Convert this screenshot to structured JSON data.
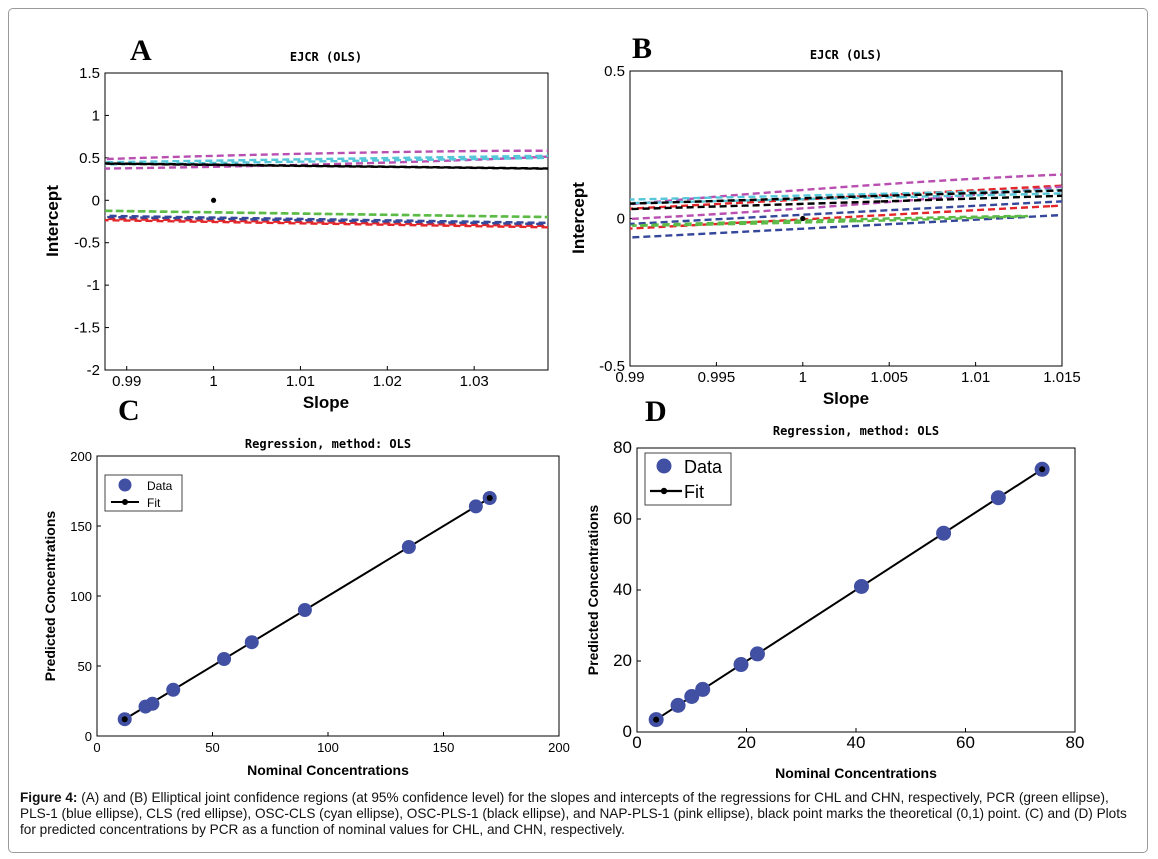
{
  "figure": {
    "caption_label": "Figure 4:",
    "caption_text": "(A) and (B) Elliptical joint confidence regions (at 95% confidence level) for the slopes and intercepts of the regressions for CHL and CHN, respectively, PCR (green ellipse), PLS-1 (blue ellipse), CLS (red ellipse), OSC-CLS (cyan ellipse), OSC-PLS-1 (black ellipse), and NAP-PLS-1 (pink ellipse), black point marks the theoretical (0,1) point. (C) and (D) Plots for predicted concentrations by PCR as a function of nominal values for CHL, and CHN, respectively."
  },
  "colors": {
    "PCR": "#5cbb47",
    "PLS-1": "#35479a",
    "CLS": "#e3262a",
    "OSC-CLS": "#55c7d9",
    "OSC-PLS-1": "#000000",
    "NAP-PLS-1": "#b94fb1",
    "data_marker": "#4150a3",
    "fit_line": "#000000"
  },
  "chart_data": [
    {
      "panel": "A",
      "type": "scatter",
      "title": "EJCR (OLS)",
      "xlabel": "Slope",
      "ylabel": "Intercept",
      "xlim": [
        0.9875,
        1.0385
      ],
      "ylim": [
        -2,
        1.5
      ],
      "xticks": [
        0.99,
        1,
        1.01,
        1.02,
        1.03
      ],
      "xtick_labels": [
        "0.99",
        "1",
        "1.01",
        "1.02",
        "1.03"
      ],
      "yticks": [
        1.5,
        1,
        0.5,
        0,
        -0.5,
        -1,
        -1.5,
        -2
      ],
      "ytick_labels": [
        "1.5",
        "1",
        "0.5",
        "0",
        "-0.5",
        "-1",
        "-1.5",
        "-2"
      ],
      "theoretical_point": {
        "x": 1,
        "y": 0
      },
      "ellipses": [
        {
          "name": "CLS",
          "cx": 1.0201,
          "cy": -0.28,
          "semi_major": 1.56,
          "semi_minor": 0.0043,
          "angle_deg": 121.3
        },
        {
          "name": "PLS-1",
          "cx": 1.0181,
          "cy": -0.24,
          "semi_major": 1.42,
          "semi_minor": 0.0037,
          "angle_deg": 121.5
        },
        {
          "name": "NAP-PLS-1",
          "cx": 1.00684,
          "cy": 0.475,
          "semi_major": 0.0216,
          "semi_minor": 0.113,
          "angle_deg": -15.9
        },
        {
          "name": "OSC-CLS",
          "cx": 1.0107,
          "cy": 0.47,
          "semi_major": 0.0075,
          "semi_minor": 0.155,
          "angle_deg": -33.2
        },
        {
          "name": "OSC-PLS-1",
          "cx": 1.0071,
          "cy": 0.41,
          "semi_major": 0.255,
          "semi_minor": 0.0011,
          "angle_deg": 130.7
        },
        {
          "name": "PCR",
          "cx": 1.00194,
          "cy": -0.145,
          "semi_major": 0.245,
          "semi_minor": 0.0009,
          "angle_deg": 124.8
        }
      ]
    },
    {
      "panel": "B",
      "type": "scatter",
      "title": "EJCR (OLS)",
      "xlabel": "Slope",
      "ylabel": "Intercept",
      "xlim": [
        0.99,
        1.015
      ],
      "ylim": [
        -0.5,
        0.5
      ],
      "xticks": [
        0.99,
        0.995,
        1,
        1.005,
        1.01,
        1.015
      ],
      "xtick_labels": [
        "0.99",
        "0.995",
        "1",
        "1.005",
        "1.01",
        "1.015"
      ],
      "yticks": [
        0.5,
        0,
        -0.5
      ],
      "ytick_labels": [
        "0.5",
        "0",
        "-0.5"
      ],
      "theoretical_point": {
        "x": 1,
        "y": 0
      },
      "ellipses": [
        {
          "name": "CLS",
          "cx": 1.00454,
          "cy": 0.045,
          "semi_major": 0.0103,
          "semi_minor": 0.36,
          "angle_deg": -17.6
        },
        {
          "name": "PLS-1",
          "cx": 1.00357,
          "cy": 0.0,
          "semi_major": 0.00733,
          "semi_minor": 0.168,
          "angle_deg": -17.8
        },
        {
          "name": "NAP-PLS-1",
          "cx": 1.00105,
          "cy": 0.07,
          "semi_major": 0.00674,
          "semi_minor": 0.085,
          "angle_deg": -11.6
        },
        {
          "name": "OSC-CLS",
          "cx": 1.00266,
          "cy": 0.075,
          "semi_major": 0.0037,
          "semi_minor": 0.134,
          "angle_deg": -37.1
        },
        {
          "name": "OSC-PLS-1",
          "cx": 1.0005,
          "cy": 0.06,
          "semi_major": 0.0046,
          "semi_minor": 0.094,
          "angle_deg": -28.9
        },
        {
          "name": "PCR",
          "cx": 1.00157,
          "cy": -0.008,
          "semi_major": 0.00185,
          "semi_minor": 0.02,
          "angle_deg": -34.4
        }
      ]
    },
    {
      "panel": "C",
      "type": "scatter",
      "title": "Regression, method: OLS",
      "xlabel": "Nominal Concentrations",
      "ylabel": "Predicted Concentrations",
      "xlim": [
        0,
        200
      ],
      "ylim": [
        0,
        200
      ],
      "xticks": [
        0,
        50,
        100,
        150,
        200
      ],
      "xtick_labels": [
        "0",
        "50",
        "100",
        "150",
        "200"
      ],
      "yticks": [
        0,
        50,
        100,
        150,
        200
      ],
      "ytick_labels": [
        "0",
        "50",
        "100",
        "150",
        "200"
      ],
      "legend": [
        "Data",
        "Fit"
      ],
      "legend_position": "top-left",
      "data": {
        "x": [
          12,
          21,
          24,
          33,
          55,
          67,
          90,
          135,
          164,
          170
        ],
        "y": [
          12,
          21,
          23,
          33,
          55,
          67,
          90,
          135,
          164,
          170
        ]
      },
      "fit": {
        "x": [
          12,
          170
        ],
        "y": [
          12,
          170
        ]
      }
    },
    {
      "panel": "D",
      "type": "scatter",
      "title": "Regression, method: OLS",
      "xlabel": "Nominal Concentrations",
      "ylabel": "Predicted Concentrations",
      "xlim": [
        0,
        80
      ],
      "ylim": [
        0,
        80
      ],
      "xticks": [
        0,
        20,
        40,
        60,
        80
      ],
      "xtick_labels": [
        "0",
        "20",
        "40",
        "60",
        "80"
      ],
      "yticks": [
        0,
        20,
        40,
        60,
        80
      ],
      "ytick_labels": [
        "0",
        "20",
        "40",
        "60",
        "80"
      ],
      "legend": [
        "Data",
        "Fit"
      ],
      "legend_position": "top-left",
      "data": {
        "x": [
          3.5,
          7.5,
          10,
          12,
          19,
          22,
          41,
          56,
          66,
          74
        ],
        "y": [
          3.5,
          7.5,
          10,
          12,
          19,
          22,
          41,
          56,
          66,
          74
        ]
      },
      "fit": {
        "x": [
          3.5,
          74
        ],
        "y": [
          3.5,
          74
        ]
      }
    }
  ]
}
